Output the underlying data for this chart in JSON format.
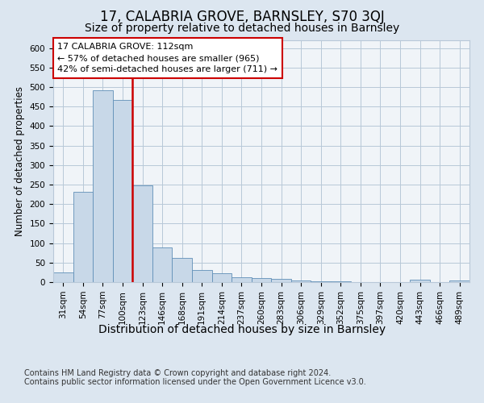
{
  "title1": "17, CALABRIA GROVE, BARNSLEY, S70 3QJ",
  "title2": "Size of property relative to detached houses in Barnsley",
  "xlabel": "Distribution of detached houses by size in Barnsley",
  "ylabel": "Number of detached properties",
  "footnote": "Contains HM Land Registry data © Crown copyright and database right 2024.\nContains public sector information licensed under the Open Government Licence v3.0.",
  "bar_categories": [
    "31sqm",
    "54sqm",
    "77sqm",
    "100sqm",
    "123sqm",
    "146sqm",
    "168sqm",
    "191sqm",
    "214sqm",
    "237sqm",
    "260sqm",
    "283sqm",
    "306sqm",
    "329sqm",
    "352sqm",
    "375sqm",
    "397sqm",
    "420sqm",
    "443sqm",
    "466sqm",
    "489sqm"
  ],
  "bar_values": [
    25,
    232,
    492,
    468,
    247,
    88,
    62,
    31,
    22,
    13,
    10,
    8,
    5,
    3,
    2,
    1,
    1,
    0,
    6,
    1,
    4
  ],
  "bar_color": "#c8d8e8",
  "bar_edge_color": "#6090b8",
  "vline_color": "#cc0000",
  "annotation_text": "17 CALABRIA GROVE: 112sqm\n← 57% of detached houses are smaller (965)\n42% of semi-detached houses are larger (711) →",
  "annotation_box_color": "#ffffff",
  "annotation_box_edge": "#cc0000",
  "ylim": [
    0,
    620
  ],
  "yticks": [
    0,
    50,
    100,
    150,
    200,
    250,
    300,
    350,
    400,
    450,
    500,
    550,
    600
  ],
  "bg_color": "#dce6f0",
  "plot_bg_color": "#f0f4f8",
  "grid_color": "#b8c8d8",
  "title1_fontsize": 12,
  "title2_fontsize": 10,
  "xlabel_fontsize": 10,
  "ylabel_fontsize": 8.5,
  "tick_fontsize": 7.5,
  "annot_fontsize": 8,
  "footnote_fontsize": 7
}
